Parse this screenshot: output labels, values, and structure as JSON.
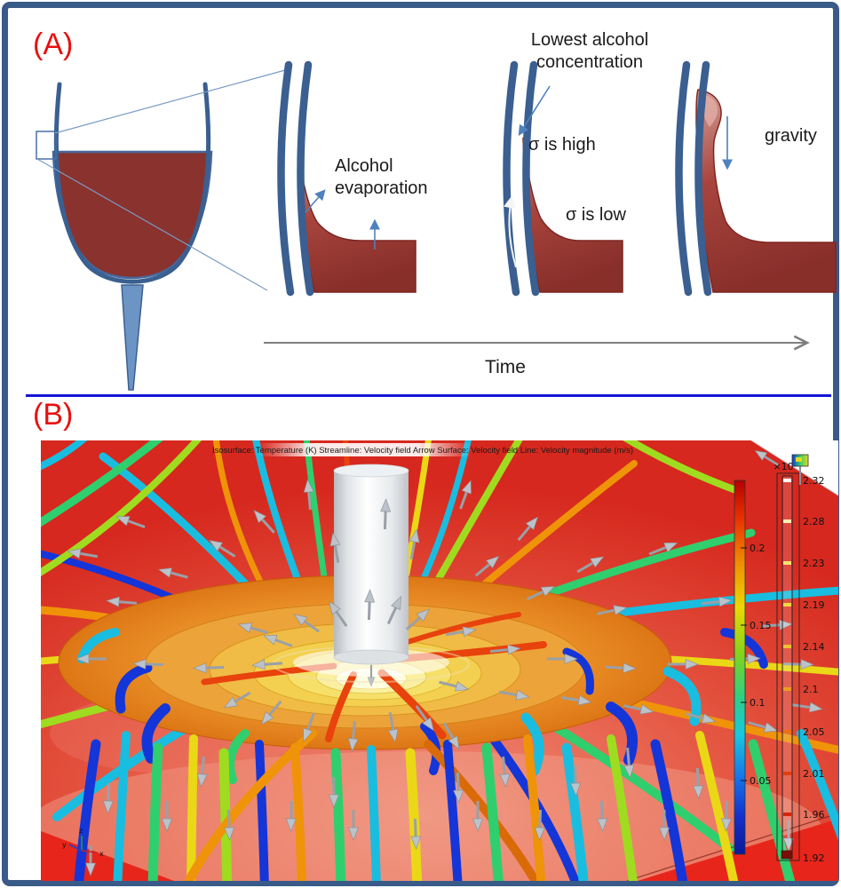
{
  "frame": {
    "border_color": "#3a5a88"
  },
  "panel_a": {
    "label": "(A)",
    "annotations": {
      "alcohol_line1": "Alcohol",
      "alcohol_line2": "evaporation",
      "lowest_line1": "Lowest alcohol",
      "lowest_line2": "concentration",
      "sigma_high": "σ is high",
      "sigma_low": "σ is low",
      "gravity": "gravity",
      "time": "Time"
    },
    "colors": {
      "wine": "#8a322e",
      "glass_outline": "#3a5f90",
      "stem": "#6c95c5",
      "annotation_arrow": "#4e81be",
      "divider": "#1414d6",
      "label_red": "#e81010"
    }
  },
  "panel_b": {
    "label": "(B)",
    "title": "Isosurface: Temperature (K)  Streamline: Velocity field  Arrow Surface: Velocity field  Line: Velocity magnitude (m/s)",
    "colorbar_velocity": {
      "ticks": [
        "0.2",
        "0.15",
        "0.1",
        "0.05"
      ]
    },
    "colorbar_scale": {
      "exponent": "×10³",
      "ticks": [
        "2.32",
        "2.28",
        "2.23",
        "2.19",
        "2.14",
        "2.1",
        "2.05",
        "2.01",
        "1.96",
        "1.92"
      ]
    },
    "axis_triad": {
      "x": "x",
      "y": "y",
      "z": "z"
    }
  }
}
